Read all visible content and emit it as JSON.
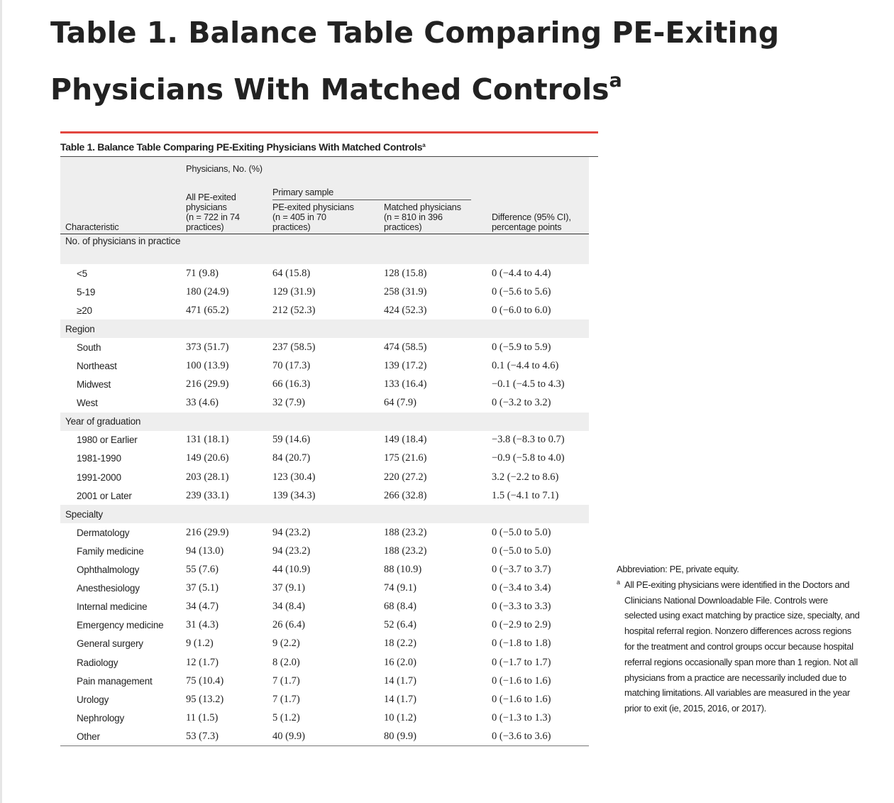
{
  "page": {
    "title": "Table 1.  Balance Table Comparing PE-Exiting Physicians With Matched Controls",
    "title_sup": "a"
  },
  "table": {
    "caption": "Table 1. Balance Table Comparing PE-Exiting Physicians With Matched Controls",
    "caption_sup": "a",
    "accent_color": "#e2463f",
    "header": {
      "group": "Physicians, No. (%)",
      "subgroup": "Primary sample",
      "characteristic": "Characteristic",
      "col1": [
        "All PE-exited",
        "physicians",
        "(n = 722 in 74",
        "practices)"
      ],
      "col2": [
        "PE-exited physicians",
        "(n = 405 in 70",
        "practices)"
      ],
      "col3": [
        "Matched physicians",
        "(n = 810 in 396",
        "practices)"
      ],
      "col4": [
        "Difference (95% CI),",
        "percentage points"
      ]
    },
    "groups": [
      {
        "label": "No. of physicians in practice",
        "rows": [
          {
            "label": "<5",
            "c1": "71 (9.8)",
            "c2": "64 (15.8)",
            "c3": "128 (15.8)",
            "c4": "0 (−4.4 to 4.4)"
          },
          {
            "label": "5-19",
            "c1": "180 (24.9)",
            "c2": "129 (31.9)",
            "c3": "258 (31.9)",
            "c4": "0 (−5.6 to 5.6)"
          },
          {
            "label": "≥20",
            "c1": "471 (65.2)",
            "c2": "212 (52.3)",
            "c3": "424 (52.3)",
            "c4": "0 (−6.0 to 6.0)"
          }
        ]
      },
      {
        "label": "Region",
        "rows": [
          {
            "label": "South",
            "c1": "373 (51.7)",
            "c2": "237 (58.5)",
            "c3": "474 (58.5)",
            "c4": "0 (−5.9 to 5.9)"
          },
          {
            "label": "Northeast",
            "c1": "100 (13.9)",
            "c2": "70 (17.3)",
            "c3": "139 (17.2)",
            "c4": "0.1 (−4.4 to 4.6)"
          },
          {
            "label": "Midwest",
            "c1": "216 (29.9)",
            "c2": "66 (16.3)",
            "c3": "133 (16.4)",
            "c4": "−0.1 (−4.5 to 4.3)"
          },
          {
            "label": "West",
            "c1": "33 (4.6)",
            "c2": "32 (7.9)",
            "c3": "64 (7.9)",
            "c4": "0 (−3.2 to 3.2)"
          }
        ]
      },
      {
        "label": "Year of graduation",
        "rows": [
          {
            "label": "1980 or Earlier",
            "c1": "131 (18.1)",
            "c2": "59 (14.6)",
            "c3": "149 (18.4)",
            "c4": "−3.8 (−8.3 to 0.7)"
          },
          {
            "label": "1981-1990",
            "c1": "149 (20.6)",
            "c2": "84 (20.7)",
            "c3": "175 (21.6)",
            "c4": "−0.9 (−5.8 to 4.0)"
          },
          {
            "label": "1991-2000",
            "c1": "203 (28.1)",
            "c2": "123 (30.4)",
            "c3": "220 (27.2)",
            "c4": "3.2 (−2.2 to 8.6)"
          },
          {
            "label": "2001 or Later",
            "c1": "239 (33.1)",
            "c2": "139 (34.3)",
            "c3": "266 (32.8)",
            "c4": "1.5 (−4.1 to 7.1)"
          }
        ]
      },
      {
        "label": "Specialty",
        "rows": [
          {
            "label": "Dermatology",
            "c1": "216 (29.9)",
            "c2": "94 (23.2)",
            "c3": "188 (23.2)",
            "c4": "0 (−5.0 to 5.0)"
          },
          {
            "label": "Family medicine",
            "c1": "94 (13.0)",
            "c2": "94 (23.2)",
            "c3": "188 (23.2)",
            "c4": "0 (−5.0 to 5.0)"
          },
          {
            "label": "Ophthalmology",
            "c1": "55 (7.6)",
            "c2": "44 (10.9)",
            "c3": "88 (10.9)",
            "c4": "0 (−3.7 to 3.7)"
          },
          {
            "label": "Anesthesiology",
            "c1": "37 (5.1)",
            "c2": "37 (9.1)",
            "c3": "74 (9.1)",
            "c4": "0 (−3.4 to 3.4)"
          },
          {
            "label": "Internal medicine",
            "c1": "34 (4.7)",
            "c2": "34 (8.4)",
            "c3": "68 (8.4)",
            "c4": "0 (−3.3 to 3.3)"
          },
          {
            "label": "Emergency medicine",
            "c1": "31 (4.3)",
            "c2": "26 (6.4)",
            "c3": "52 (6.4)",
            "c4": "0 (−2.9 to 2.9)"
          },
          {
            "label": "General surgery",
            "c1": "9 (1.2)",
            "c2": "9 (2.2)",
            "c3": "18 (2.2)",
            "c4": "0 (−1.8 to 1.8)"
          },
          {
            "label": "Radiology",
            "c1": "12 (1.7)",
            "c2": "8 (2.0)",
            "c3": "16 (2.0)",
            "c4": "0 (−1.7 to 1.7)"
          },
          {
            "label": "Pain management",
            "c1": "75 (10.4)",
            "c2": "7 (1.7)",
            "c3": "14 (1.7)",
            "c4": "0 (−1.6 to 1.6)"
          },
          {
            "label": "Urology",
            "c1": "95 (13.2)",
            "c2": "7 (1.7)",
            "c3": "14 (1.7)",
            "c4": "0 (−1.6 to 1.6)"
          },
          {
            "label": "Nephrology",
            "c1": "11 (1.5)",
            "c2": "5 (1.2)",
            "c3": "10 (1.2)",
            "c4": "0 (−1.3 to 1.3)"
          },
          {
            "label": "Other",
            "c1": "53 (7.3)",
            "c2": "40 (9.9)",
            "c3": "80 (9.9)",
            "c4": "0 (−3.6 to 3.6)"
          }
        ]
      }
    ]
  },
  "notes": {
    "abbreviation": "Abbreviation: PE, private equity.",
    "footnote_mark": "a",
    "footnote": "All PE-exiting physicians were identified in the Doctors and Clinicians National Downloadable File. Controls were selected using exact matching by practice size, specialty, and hospital referral region. Nonzero differences across regions for the treatment and control groups occur because hospital referral regions occasionally span more than 1 region. Not all physicians from a practice are necessarily included due to matching limitations. All variables are measured in the year prior to exit (ie, 2015, 2016, or 2017)."
  }
}
